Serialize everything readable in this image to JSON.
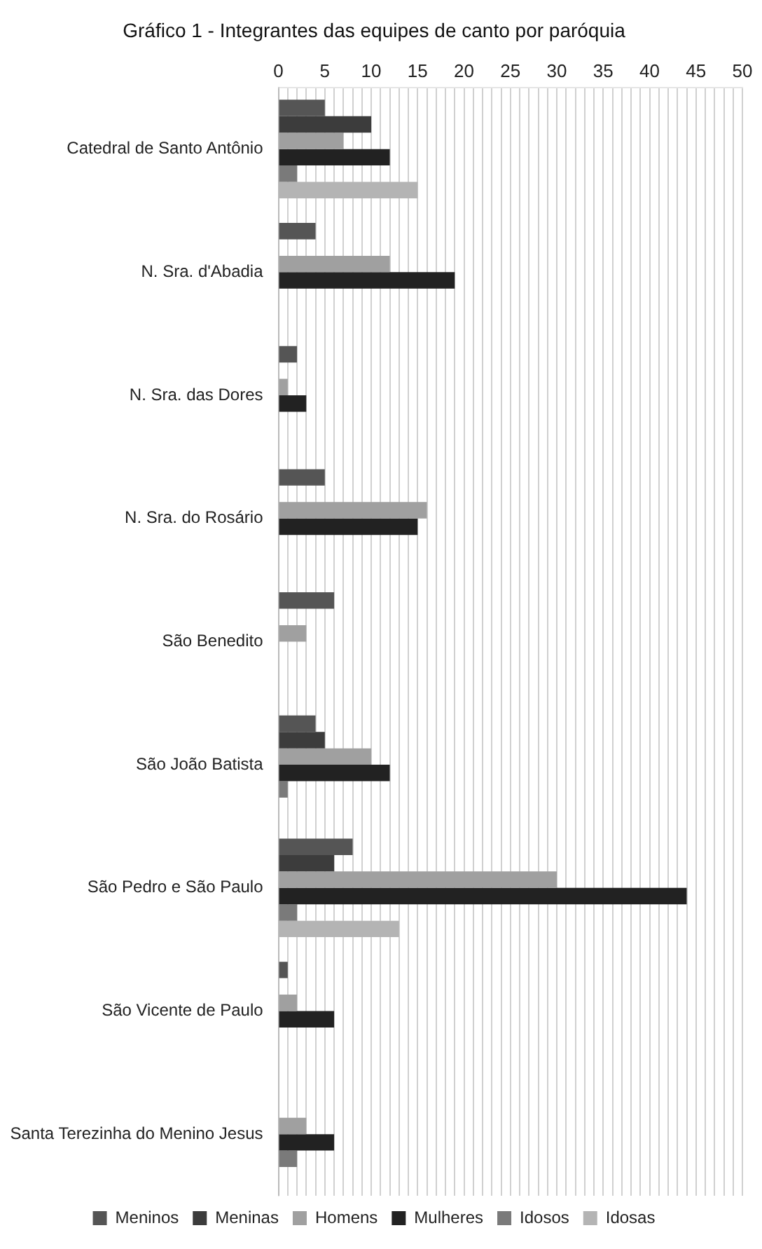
{
  "chart_data": {
    "type": "bar",
    "orientation": "horizontal",
    "title": "Gráfico 1 - Integrantes das equipes de canto por paróquia",
    "categories": [
      "Catedral de Santo Antônio",
      "N. Sra. d'Abadia",
      "N. Sra. das Dores",
      "N. Sra. do Rosário",
      "São Benedito",
      "São João Batista",
      "São Pedro e São Paulo",
      "São Vicente de Paulo",
      "Santa Terezinha do Menino Jesus"
    ],
    "series": [
      {
        "name": "Meninos",
        "color": "#555555",
        "values": [
          5,
          4,
          2,
          5,
          6,
          4,
          8,
          1,
          0
        ]
      },
      {
        "name": "Meninas",
        "color": "#3c3c3c",
        "values": [
          10,
          0,
          0,
          0,
          0,
          5,
          6,
          0,
          0
        ]
      },
      {
        "name": "Homens",
        "color": "#a0a0a0",
        "values": [
          7,
          12,
          1,
          16,
          3,
          10,
          30,
          2,
          3
        ]
      },
      {
        "name": "Mulheres",
        "color": "#222222",
        "values": [
          12,
          19,
          3,
          15,
          0,
          12,
          44,
          6,
          6
        ]
      },
      {
        "name": "Idosos",
        "color": "#7a7a7a",
        "values": [
          2,
          0,
          0,
          0,
          0,
          1,
          2,
          0,
          2
        ]
      },
      {
        "name": "Idosas",
        "color": "#b4b4b4",
        "values": [
          15,
          0,
          0,
          0,
          0,
          0,
          13,
          0,
          0
        ]
      }
    ],
    "xlim": [
      0,
      50
    ],
    "xticks": [
      0,
      {
        "value": 1,
        "label": null
      },
      {
        "value": 2,
        "label": null
      },
      {
        "value": 3,
        "label": null
      },
      {
        "value": 4,
        "label": null
      },
      5,
      {
        "value": 6,
        "label": null
      },
      {
        "value": 7,
        "label": null
      },
      {
        "value": 8,
        "label": null
      },
      {
        "value": 9,
        "label": null
      },
      10,
      {
        "value": 11,
        "label": null
      },
      {
        "value": 12,
        "label": null
      },
      {
        "value": 13,
        "label": null
      },
      {
        "value": 14,
        "label": null
      },
      15,
      {
        "value": 16,
        "label": null
      },
      {
        "value": 17,
        "label": null
      },
      {
        "value": 18,
        "label": null
      },
      {
        "value": 19,
        "label": null
      },
      20,
      {
        "value": 21,
        "label": null
      },
      {
        "value": 22,
        "label": null
      },
      {
        "value": 23,
        "label": null
      },
      {
        "value": 24,
        "label": null
      },
      25,
      {
        "value": 26,
        "label": null
      },
      {
        "value": 27,
        "label": null
      },
      {
        "value": 28,
        "label": null
      },
      {
        "value": 29,
        "label": null
      },
      30,
      {
        "value": 31,
        "label": null
      },
      {
        "value": 32,
        "label": null
      },
      {
        "value": 33,
        "label": null
      },
      {
        "value": 34,
        "label": null
      },
      35,
      {
        "value": 36,
        "label": null
      },
      {
        "value": 37,
        "label": null
      },
      {
        "value": 38,
        "label": null
      },
      {
        "value": 39,
        "label": null
      },
      40,
      {
        "value": 41,
        "label": null
      },
      {
        "value": 42,
        "label": null
      },
      {
        "value": 43,
        "label": null
      },
      {
        "value": 44,
        "label": null
      },
      45,
      {
        "value": 46,
        "label": null
      },
      {
        "value": 47,
        "label": null
      },
      {
        "value": 48,
        "label": null
      },
      {
        "value": 49,
        "label": null
      },
      50
    ],
    "grid": true,
    "legend": "bottom"
  }
}
